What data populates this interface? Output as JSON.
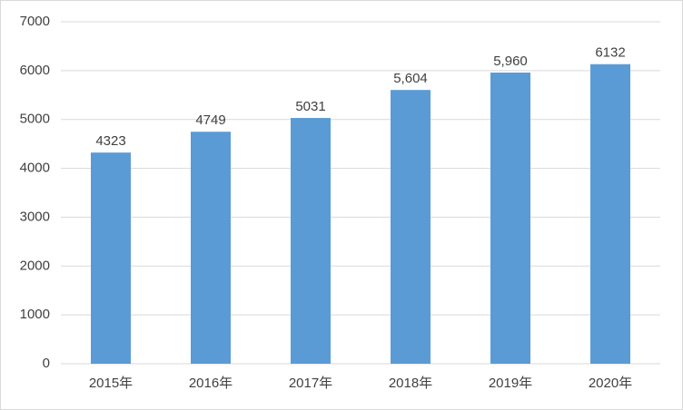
{
  "chart_data": {
    "type": "bar",
    "categories": [
      "2015年",
      "2016年",
      "2017年",
      "2018年",
      "2019年",
      "2020年"
    ],
    "values": [
      4323,
      4749,
      5031,
      5604,
      5960,
      6132
    ],
    "value_labels": [
      "4323",
      "4749",
      "5031",
      "5,604",
      "5,960",
      "6132"
    ],
    "color": "#5b9bd5",
    "ylim": [
      0,
      7000
    ],
    "yticks": [
      0,
      1000,
      2000,
      3000,
      4000,
      5000,
      6000,
      7000
    ],
    "grid": true
  }
}
